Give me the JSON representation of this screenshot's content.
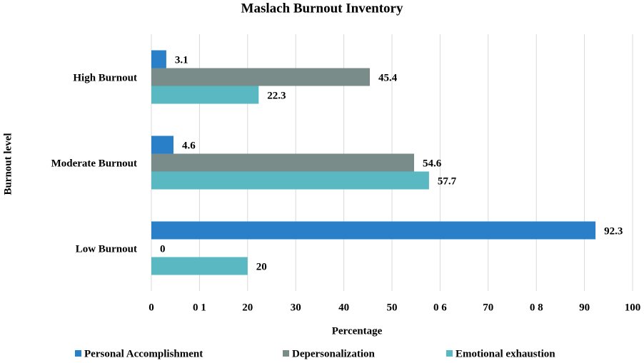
{
  "chart_data": {
    "type": "hbar",
    "title": "Maslach Burnout Inventory",
    "x_label": "Percentage",
    "y_label": "Burnout level",
    "categories": [
      "High Burnout",
      "Moderate Burnout",
      "Low Burnout"
    ],
    "series": [
      {
        "name": "Personal Accomplishment",
        "color": "#2a7fc9",
        "values": [
          3.1,
          4.6,
          92.3
        ]
      },
      {
        "name": "Depersonalization",
        "color": "#7a8c8a",
        "values": [
          45.4,
          54.6,
          0
        ]
      },
      {
        "name": "Emotional exhaustion",
        "color": "#5ab8c2",
        "values": [
          22.3,
          57.7,
          20
        ]
      }
    ],
    "xlim": [
      0,
      100
    ],
    "xticks": [
      0,
      {
        "value": 10,
        "label": "0 1"
      },
      20,
      30,
      40,
      50,
      {
        "value": 60,
        "label": "0 6"
      },
      70,
      {
        "value": 80,
        "label": "0 8"
      },
      90,
      100
    ],
    "grid": true,
    "legend": "bottom"
  }
}
